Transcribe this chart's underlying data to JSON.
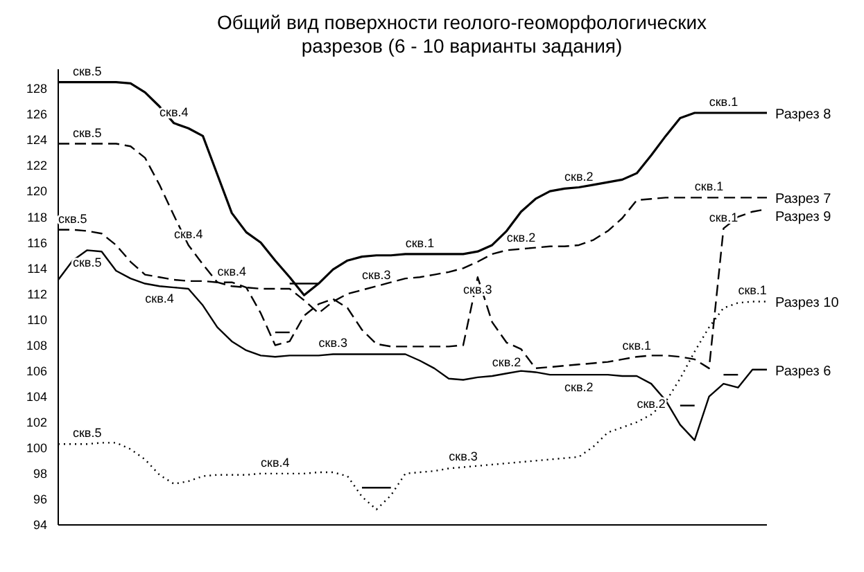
{
  "chart_data": {
    "type": "line",
    "title": "Общий вид поверхности геолого-геоморфологических разрезов (6 - 10 варианты задания)",
    "categories": [
      null,
      null,
      null,
      null,
      null,
      null,
      null,
      null,
      null,
      null,
      null,
      null,
      null,
      null,
      null,
      null,
      null,
      null,
      null,
      null,
      null,
      null,
      null,
      null,
      null,
      null,
      null,
      null,
      null,
      null,
      null,
      null,
      null,
      null,
      null,
      null,
      null,
      null,
      null,
      null,
      null,
      null,
      null,
      null,
      null,
      null,
      null,
      null,
      null,
      null
    ],
    "ylim": [
      94,
      129.5
    ],
    "yticks": [
      94,
      96,
      98,
      100,
      102,
      104,
      106,
      108,
      110,
      112,
      114,
      116,
      118,
      120,
      122,
      124,
      126,
      128
    ],
    "tick_labels": "y",
    "legend": false,
    "marker": "none",
    "series": [
      {
        "name": "Разрез 8",
        "color": "#000000",
        "line_style": "solid",
        "values": [
          128.5,
          128.5,
          128.5,
          128.5,
          128.5,
          128.4,
          127.7,
          126.6,
          125.3,
          124.9,
          124.3,
          121.3,
          118.3,
          116.8,
          116.0,
          114.6,
          113.3,
          111.9,
          112.8,
          113.9,
          114.6,
          114.9,
          115.0,
          115.0,
          115.1,
          115.1,
          115.1,
          115.1,
          115.1,
          115.3,
          115.8,
          116.9,
          118.4,
          119.4,
          120.0,
          120.2,
          120.3,
          120.5,
          120.7,
          120.9,
          121.4,
          122.8,
          124.3,
          125.7,
          126.1,
          126.1,
          126.1,
          126.1,
          126.1,
          126.1
        ],
        "value_labels": [
          null,
          null,
          "скв.5",
          null,
          null,
          null,
          null,
          null,
          "скв.4",
          null,
          null,
          null,
          null,
          null,
          null,
          null,
          null,
          null,
          null,
          null,
          null,
          null,
          null,
          null,
          null,
          "скв.1",
          null,
          null,
          null,
          null,
          null,
          null,
          null,
          null,
          null,
          null,
          "скв.2",
          null,
          null,
          null,
          null,
          null,
          null,
          null,
          null,
          null,
          "скв.1",
          null,
          null,
          null
        ]
      },
      {
        "name": "Разрез 7",
        "color": "#000000",
        "line_style": "dashed",
        "values": [
          123.7,
          123.7,
          123.7,
          123.7,
          123.7,
          123.5,
          122.6,
          120.5,
          118.1,
          115.8,
          114.3,
          112.9,
          112.6,
          112.5,
          112.4,
          112.4,
          112.4,
          111.5,
          110.5,
          111.4,
          112.0,
          112.3,
          112.6,
          112.9,
          113.2,
          113.3,
          113.5,
          113.7,
          114.0,
          114.5,
          115.1,
          115.4,
          115.5,
          115.6,
          115.7,
          115.7,
          115.8,
          116.2,
          116.9,
          117.9,
          119.3,
          119.4,
          119.5,
          119.5,
          119.5,
          119.5,
          119.5,
          119.5,
          119.5,
          119.5
        ],
        "value_labels": [
          null,
          null,
          "скв.5",
          null,
          null,
          null,
          null,
          null,
          null,
          "скв.4",
          null,
          null,
          null,
          null,
          null,
          null,
          null,
          null,
          null,
          null,
          null,
          null,
          "скв.3",
          null,
          null,
          null,
          null,
          null,
          null,
          null,
          null,
          null,
          "скв.2",
          null,
          null,
          null,
          null,
          null,
          null,
          null,
          null,
          null,
          null,
          null,
          null,
          "скв.1",
          null,
          null,
          null,
          null
        ]
      },
      {
        "name": "Разрез 9",
        "color": "#000000",
        "line_style": "dashed",
        "values": [
          117.0,
          117.0,
          116.9,
          116.7,
          115.8,
          114.5,
          113.5,
          113.3,
          113.1,
          113.0,
          113.0,
          112.9,
          112.9,
          112.5,
          110.5,
          108.0,
          108.3,
          110.3,
          111.2,
          111.6,
          110.9,
          109.2,
          108.1,
          107.9,
          107.9,
          107.9,
          107.9,
          107.9,
          108.0,
          113.3,
          109.8,
          108.2,
          107.7,
          106.2,
          106.3,
          106.4,
          106.5,
          106.6,
          106.7,
          106.9,
          107.1,
          107.2,
          107.2,
          107.1,
          106.9,
          106.2,
          117.1,
          118.0,
          118.4,
          118.6
        ],
        "value_labels": [
          null,
          "скв.5",
          null,
          null,
          null,
          null,
          null,
          null,
          null,
          null,
          null,
          null,
          "скв.4",
          null,
          null,
          null,
          null,
          null,
          null,
          null,
          null,
          null,
          null,
          null,
          null,
          null,
          null,
          null,
          null,
          "скв.3",
          null,
          null,
          null,
          null,
          null,
          null,
          null,
          null,
          null,
          null,
          "скв.1",
          null,
          null,
          null,
          null,
          null,
          "скв.1",
          null,
          null,
          null
        ]
      },
      {
        "name": "Разрез 10",
        "color": "#000000",
        "line_style": "dotted",
        "values": [
          100.3,
          100.3,
          100.3,
          100.4,
          100.4,
          99.9,
          99.1,
          97.9,
          97.2,
          97.4,
          97.8,
          97.9,
          97.9,
          97.9,
          98.0,
          98.0,
          98.0,
          98.0,
          98.1,
          98.1,
          97.8,
          96.2,
          95.2,
          96.3,
          98.0,
          98.1,
          98.2,
          98.4,
          98.5,
          98.6,
          98.7,
          98.8,
          98.9,
          99.0,
          99.1,
          99.2,
          99.3,
          100.1,
          101.2,
          101.6,
          102.0,
          102.6,
          103.6,
          105.4,
          107.5,
          109.4,
          110.9,
          111.3,
          111.4,
          111.4
        ],
        "value_labels": [
          null,
          null,
          "скв.5",
          null,
          null,
          null,
          null,
          null,
          null,
          null,
          null,
          null,
          null,
          null,
          null,
          "скв.4",
          null,
          null,
          null,
          null,
          null,
          null,
          null,
          null,
          null,
          null,
          null,
          null,
          "скв.3",
          null,
          null,
          null,
          null,
          null,
          null,
          null,
          null,
          null,
          null,
          null,
          null,
          "скв.2",
          null,
          null,
          null,
          null,
          null,
          null,
          "скв.1",
          null
        ]
      },
      {
        "name": "Разрез 6",
        "color": "#000000",
        "line_style": "solid",
        "values": [
          113.1,
          114.6,
          115.4,
          115.3,
          113.8,
          113.2,
          112.8,
          112.6,
          112.5,
          112.4,
          111.1,
          109.4,
          108.3,
          107.6,
          107.2,
          107.1,
          107.2,
          107.2,
          107.2,
          107.3,
          107.3,
          107.3,
          107.3,
          107.3,
          107.3,
          106.8,
          106.2,
          105.4,
          105.3,
          105.5,
          105.6,
          105.8,
          106.0,
          105.9,
          105.7,
          105.7,
          105.7,
          105.7,
          105.7,
          105.6,
          105.6,
          105.0,
          103.7,
          101.8,
          100.6,
          104.0,
          105.0,
          104.7,
          106.1,
          106.1
        ],
        "value_labels": [
          null,
          null,
          "скв.5",
          null,
          null,
          null,
          null,
          "скв.4",
          null,
          null,
          null,
          null,
          null,
          null,
          null,
          null,
          null,
          null,
          null,
          "скв.3",
          null,
          null,
          null,
          null,
          null,
          null,
          null,
          null,
          null,
          null,
          null,
          "скв.2",
          null,
          null,
          null,
          null,
          "скв.2",
          null,
          null,
          null,
          null,
          null,
          null,
          null,
          null,
          null,
          null,
          null,
          null,
          null
        ]
      },
      {
        "color": "#000000",
        "line_style": "solid",
        "values": [
          null,
          null,
          null,
          null,
          null,
          null,
          null,
          null,
          null,
          null,
          null,
          null,
          null,
          null,
          null,
          null,
          112.8,
          112.8,
          112.8,
          null,
          null,
          null,
          null,
          null,
          null,
          null,
          null,
          null,
          null,
          null,
          null,
          null,
          null,
          null,
          null,
          null,
          null,
          null,
          null,
          null,
          null,
          null,
          null,
          null,
          null,
          null,
          null,
          null,
          null,
          null
        ]
      },
      {
        "color": "#000000",
        "line_style": "solid",
        "values": [
          null,
          null,
          null,
          null,
          null,
          null,
          null,
          null,
          null,
          null,
          null,
          null,
          null,
          null,
          null,
          109.0,
          109.0,
          null,
          null,
          null,
          null,
          null,
          null,
          null,
          null,
          null,
          null,
          null,
          null,
          null,
          null,
          null,
          null,
          null,
          null,
          null,
          null,
          null,
          null,
          null,
          null,
          null,
          null,
          null,
          null,
          null,
          null,
          null,
          null,
          null
        ]
      },
      {
        "color": "#000000",
        "line_style": "solid",
        "values": [
          null,
          null,
          null,
          null,
          null,
          null,
          null,
          null,
          null,
          null,
          null,
          null,
          null,
          null,
          null,
          null,
          null,
          null,
          null,
          null,
          null,
          96.9,
          96.9,
          96.9,
          null,
          null,
          null,
          null,
          null,
          null,
          null,
          null,
          null,
          null,
          null,
          null,
          null,
          null,
          null,
          null,
          null,
          null,
          null,
          null,
          null,
          null,
          null,
          null,
          null,
          null
        ]
      },
      {
        "color": "#000000",
        "line_style": "solid",
        "values": [
          null,
          null,
          null,
          null,
          null,
          null,
          null,
          null,
          null,
          null,
          null,
          null,
          null,
          null,
          null,
          null,
          null,
          null,
          null,
          null,
          null,
          null,
          null,
          null,
          null,
          null,
          null,
          null,
          null,
          null,
          null,
          null,
          null,
          null,
          null,
          null,
          null,
          null,
          null,
          null,
          null,
          null,
          null,
          103.3,
          103.3,
          null,
          null,
          null,
          null,
          null
        ]
      },
      {
        "color": "#000000",
        "line_style": "solid",
        "values": [
          null,
          null,
          null,
          null,
          null,
          null,
          null,
          null,
          null,
          null,
          null,
          null,
          null,
          null,
          null,
          null,
          null,
          null,
          null,
          null,
          null,
          null,
          null,
          null,
          null,
          null,
          null,
          null,
          null,
          null,
          null,
          null,
          null,
          null,
          null,
          null,
          null,
          null,
          null,
          null,
          null,
          null,
          null,
          null,
          null,
          null,
          105.7,
          105.7,
          null,
          null
        ]
      }
    ]
  }
}
